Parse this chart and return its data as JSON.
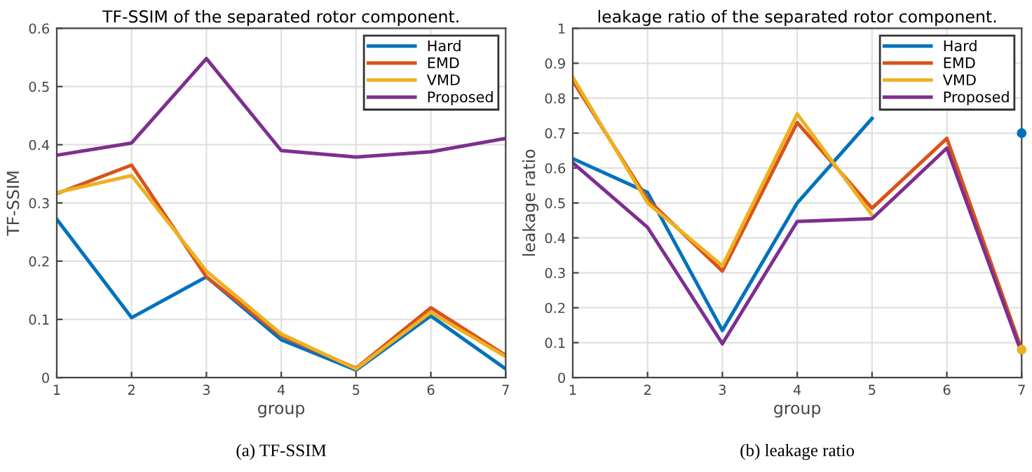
{
  "chart_data": [
    {
      "type": "line",
      "title": "TF-SSIM of the separated rotor component.",
      "xlabel": "group",
      "ylabel": "TF-SSIM",
      "x": [
        1,
        2,
        3,
        4,
        5,
        6,
        7
      ],
      "series": [
        {
          "name": "Hard",
          "color": "#0072bd",
          "values": [
            0.272,
            0.103,
            0.173,
            0.065,
            0.013,
            0.106,
            0.015
          ]
        },
        {
          "name": "EMD",
          "color": "#d95319",
          "values": [
            0.316,
            0.365,
            0.173,
            0.072,
            0.016,
            0.12,
            0.038
          ]
        },
        {
          "name": "VMD",
          "color": "#edb120",
          "values": [
            0.318,
            0.347,
            0.183,
            0.075,
            0.015,
            0.112,
            0.036
          ]
        },
        {
          "name": "Proposed",
          "color": "#7e2f8e",
          "values": [
            0.382,
            0.403,
            0.548,
            0.39,
            0.379,
            0.388,
            0.411
          ]
        }
      ],
      "xlim": [
        1,
        7
      ],
      "xticks": [
        1,
        2,
        3,
        4,
        5,
        6,
        7
      ],
      "ylim": [
        0,
        0.6
      ],
      "yticks": [
        0,
        0.1,
        0.2,
        0.3,
        0.4,
        0.5,
        0.6
      ],
      "grid": true,
      "legend": "top right",
      "annotations": [
        "(a) TF-SSIM"
      ]
    },
    {
      "type": "line",
      "title": "leakage ratio of the separated rotor component.",
      "xlabel": "group",
      "ylabel": "leakage ratio",
      "x": [
        1,
        2,
        3,
        4,
        5,
        6,
        7
      ],
      "series": [
        {
          "name": "Hard",
          "color": "#0072bd",
          "values": [
            0.627,
            0.53,
            0.135,
            0.5,
            0.742,
            null,
            0.7
          ]
        },
        {
          "name": "EMD",
          "color": "#d95319",
          "values": [
            0.85,
            0.51,
            0.305,
            0.73,
            0.485,
            0.685,
            0.08
          ]
        },
        {
          "name": "VMD",
          "color": "#edb120",
          "values": [
            0.86,
            0.5,
            0.32,
            0.755,
            0.465,
            null,
            0.08
          ]
        },
        {
          "name": "Proposed",
          "color": "#7e2f8e",
          "values": [
            0.615,
            0.43,
            0.097,
            0.447,
            0.455,
            0.657,
            0.07
          ]
        }
      ],
      "xlim": [
        1,
        7
      ],
      "xticks": [
        1,
        2,
        3,
        4,
        5,
        6,
        7
      ],
      "ylim": [
        0,
        1
      ],
      "yticks": [
        0,
        0.1,
        0.2,
        0.3,
        0.4,
        0.5,
        0.6,
        0.7,
        0.8,
        0.9,
        1
      ],
      "grid": true,
      "legend": "top right",
      "annotations": [
        "(b) leakage ratio"
      ]
    }
  ]
}
